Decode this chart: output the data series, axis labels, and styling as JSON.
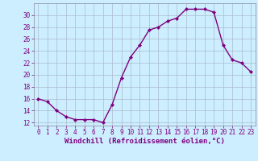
{
  "x": [
    0,
    1,
    2,
    3,
    4,
    5,
    6,
    7,
    8,
    9,
    10,
    11,
    12,
    13,
    14,
    15,
    16,
    17,
    18,
    19,
    20,
    21,
    22,
    23
  ],
  "y": [
    16,
    15.5,
    14,
    13,
    12.5,
    12.5,
    12.5,
    12,
    15,
    19.5,
    23,
    25,
    27.5,
    28,
    29,
    29.5,
    31,
    31,
    31,
    30.5,
    25,
    22.5,
    22,
    20.5
  ],
  "line_color": "#800080",
  "marker": "D",
  "marker_size": 2,
  "background_color": "#cceeff",
  "grid_color": "#aabbcc",
  "xlabel": "Windchill (Refroidissement éolien,°C)",
  "xlabel_color": "#800080",
  "ylim": [
    11.5,
    32
  ],
  "xlim": [
    -0.5,
    23.5
  ],
  "yticks": [
    12,
    14,
    16,
    18,
    20,
    22,
    24,
    26,
    28,
    30
  ],
  "xticks": [
    0,
    1,
    2,
    3,
    4,
    5,
    6,
    7,
    8,
    9,
    10,
    11,
    12,
    13,
    14,
    15,
    16,
    17,
    18,
    19,
    20,
    21,
    22,
    23
  ],
  "tick_color": "#800080",
  "tick_fontsize": 5.5,
  "xlabel_fontsize": 6.5,
  "line_width": 1.0
}
